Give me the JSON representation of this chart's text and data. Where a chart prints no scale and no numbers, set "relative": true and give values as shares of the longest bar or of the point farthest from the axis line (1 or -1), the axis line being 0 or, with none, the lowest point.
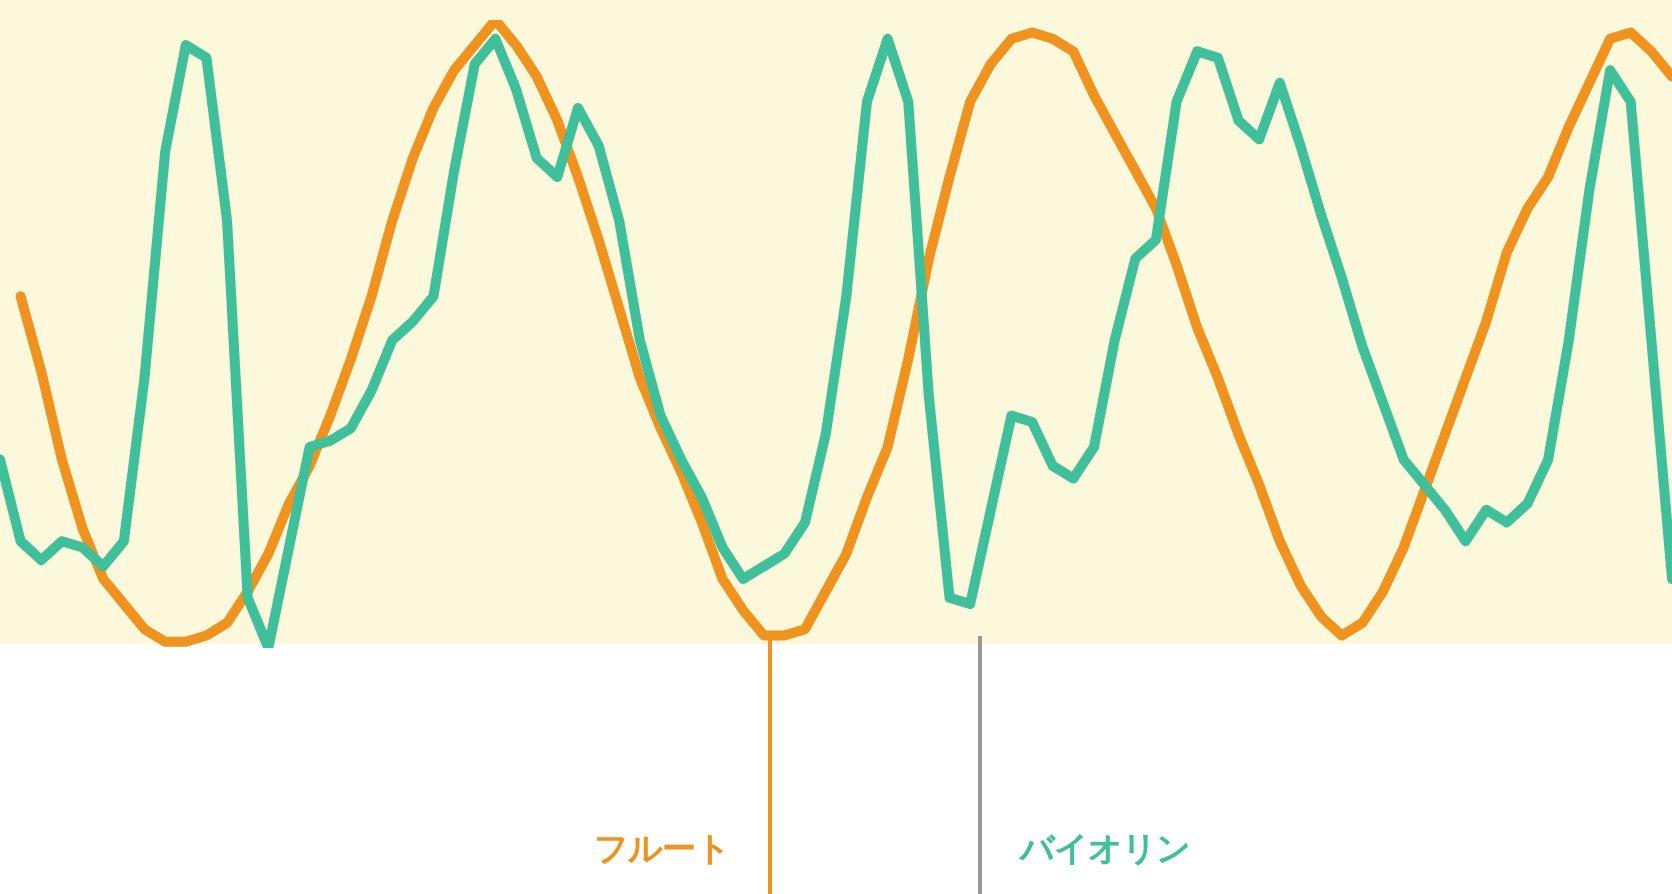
{
  "chart_data": {
    "type": "line",
    "relative": true,
    "categories": [
      null,
      null,
      null,
      null,
      null,
      null,
      null,
      null,
      null,
      null,
      null,
      null,
      null,
      null,
      null,
      null,
      null,
      null,
      null,
      null,
      null,
      null,
      null,
      null,
      null,
      null,
      null,
      null,
      null,
      null,
      null,
      null,
      null,
      null,
      null,
      null,
      null,
      null,
      null,
      null,
      null,
      null,
      null,
      null,
      null,
      null,
      null,
      null,
      null,
      null,
      null,
      null,
      null,
      null,
      null,
      null,
      null,
      null,
      null,
      null,
      null,
      null,
      null,
      null,
      null,
      null,
      null,
      null,
      null,
      null,
      null,
      null,
      null,
      null,
      null,
      null,
      null,
      null,
      null,
      null,
      null,
      null
    ],
    "marker": "none",
    "series": [
      {
        "name": "フルート",
        "color": "#f0921e",
        "values": [
          null,
          0.56,
          0.44,
          0.3,
          0.19,
          0.11,
          0.07,
          0.03,
          0.01,
          0.01,
          0.02,
          0.04,
          0.09,
          0.15,
          0.23,
          0.29,
          0.37,
          0.46,
          0.56,
          0.68,
          0.78,
          0.86,
          0.92,
          0.96,
          1.0,
          0.96,
          0.91,
          0.84,
          0.75,
          0.65,
          0.54,
          0.43,
          0.35,
          0.28,
          0.2,
          0.11,
          0.06,
          0.02,
          0.02,
          0.03,
          0.09,
          0.15,
          0.24,
          0.32,
          0.46,
          0.62,
          0.75,
          0.87,
          0.93,
          0.97,
          0.98,
          0.97,
          0.95,
          0.88,
          0.82,
          0.76,
          0.7,
          0.61,
          0.51,
          0.43,
          0.34,
          0.26,
          0.17,
          0.1,
          0.05,
          0.02,
          0.04,
          0.09,
          0.16,
          0.25,
          0.34,
          0.43,
          0.52,
          0.63,
          0.7,
          0.75,
          0.83,
          0.9,
          0.97,
          0.98,
          0.95,
          0.91
        ]
      },
      {
        "name": "バイオリン",
        "color": "#3fbf9a",
        "values": [
          0.3,
          0.17,
          0.14,
          0.17,
          0.16,
          0.13,
          0.17,
          0.43,
          0.79,
          0.96,
          0.94,
          0.68,
          0.08,
          0.0,
          0.16,
          0.32,
          0.33,
          0.35,
          0.41,
          0.49,
          0.52,
          0.56,
          0.76,
          0.93,
          0.97,
          0.89,
          0.78,
          0.75,
          0.86,
          0.8,
          0.68,
          0.49,
          0.37,
          0.3,
          0.24,
          0.16,
          0.11,
          0.13,
          0.15,
          0.2,
          0.34,
          0.56,
          0.87,
          0.97,
          0.87,
          0.4,
          0.08,
          0.07,
          0.22,
          0.37,
          0.36,
          0.29,
          0.27,
          0.32,
          0.49,
          0.62,
          0.65,
          0.87,
          0.95,
          0.94,
          0.84,
          0.81,
          0.9,
          0.8,
          0.69,
          0.59,
          0.48,
          0.39,
          0.3,
          0.26,
          0.22,
          0.17,
          0.22,
          0.2,
          0.23,
          0.3,
          0.49,
          0.73,
          0.92,
          0.87,
          0.49,
          0.11
        ]
      }
    ]
  }
}
